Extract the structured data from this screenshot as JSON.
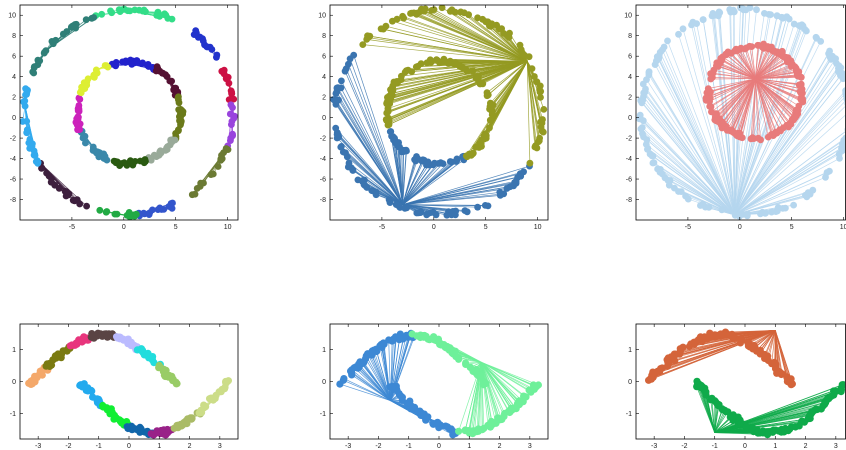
{
  "chart_data": [
    {
      "type": "scatter",
      "panel": "top-left",
      "description_style": "clusters of two concentric rings",
      "xlim": [
        -10,
        11
      ],
      "ylim": [
        -10,
        11
      ],
      "xticks": [
        -5,
        0,
        5,
        10
      ],
      "yticks": [
        -8,
        -6,
        -4,
        -2,
        0,
        2,
        4,
        6,
        8,
        10
      ],
      "xtick_labels": [
        "-5",
        "0",
        "5",
        "10"
      ],
      "ytick_labels": [
        "-8",
        "-6",
        "-4",
        "-2",
        "0",
        "2",
        "4",
        "6",
        "8",
        "10"
      ],
      "rings": [
        {
          "cx": 0.5,
          "cy": 0.5,
          "r": 10
        },
        {
          "cx": 0.5,
          "cy": 0.5,
          "r": 5
        }
      ],
      "clusters": [
        {
          "ring": 0,
          "from_deg": 60,
          "to_deg": 110,
          "color": "#33dd88"
        },
        {
          "ring": 0,
          "from_deg": 30,
          "to_deg": 60,
          "color": "#2233cc"
        },
        {
          "ring": 0,
          "from_deg": 5,
          "to_deg": 30,
          "color": "#cc1144"
        },
        {
          "ring": 0,
          "from_deg": -20,
          "to_deg": 5,
          "color": "#9944dd"
        },
        {
          "ring": 0,
          "from_deg": -55,
          "to_deg": -20,
          "color": "#6b7a33"
        },
        {
          "ring": 0,
          "from_deg": -85,
          "to_deg": -55,
          "color": "#3355cc"
        },
        {
          "ring": 0,
          "from_deg": -110,
          "to_deg": -85,
          "color": "#22aa44"
        },
        {
          "ring": 0,
          "from_deg": -150,
          "to_deg": -110,
          "color": "#3d1f3d"
        },
        {
          "ring": 0,
          "from_deg": -200,
          "to_deg": -150,
          "color": "#33aaee"
        },
        {
          "ring": 0,
          "from_deg": 110,
          "to_deg": 160,
          "color": "#2f7f77"
        },
        {
          "ring": 1,
          "from_deg": 60,
          "to_deg": 110,
          "color": "#2222cc"
        },
        {
          "ring": 1,
          "from_deg": 20,
          "to_deg": 60,
          "color": "#551133"
        },
        {
          "ring": 1,
          "from_deg": -30,
          "to_deg": 20,
          "color": "#6b7a1a"
        },
        {
          "ring": 1,
          "from_deg": -70,
          "to_deg": -30,
          "color": "#99aa99"
        },
        {
          "ring": 1,
          "from_deg": -110,
          "to_deg": -70,
          "color": "#2a5a11"
        },
        {
          "ring": 1,
          "from_deg": -160,
          "to_deg": -110,
          "color": "#3a88aa"
        },
        {
          "ring": 1,
          "from_deg": 160,
          "to_deg": 200,
          "color": "#cc22bb"
        },
        {
          "ring": 1,
          "from_deg": 110,
          "to_deg": 160,
          "color": "#ddee33"
        }
      ]
    },
    {
      "type": "scatter",
      "panel": "top-middle",
      "xlim": [
        -10,
        11
      ],
      "ylim": [
        -10,
        11
      ],
      "xticks": [
        -5,
        0,
        5,
        10
      ],
      "yticks": [
        -8,
        -6,
        -4,
        -2,
        0,
        2,
        4,
        6,
        8,
        10
      ],
      "xtick_labels": [
        "-5",
        "0",
        "5",
        "10"
      ],
      "ytick_labels": [
        "-8",
        "-6",
        "-4",
        "-2",
        "0",
        "2",
        "4",
        "6",
        "8",
        "10"
      ],
      "groups": [
        {
          "color": "#3a74b0",
          "center": [
            -3,
            -8.5
          ],
          "arcs": [
            {
              "ring": 0,
              "from_deg": 140,
              "to_deg": 330
            },
            {
              "ring": 1,
              "from_deg": 200,
              "to_deg": 300
            }
          ]
        },
        {
          "color": "#949a22",
          "center": [
            9,
            5.5
          ],
          "arcs": [
            {
              "ring": 0,
              "from_deg": -30,
              "to_deg": 140
            },
            {
              "ring": 1,
              "from_deg": -60,
              "to_deg": 200
            }
          ]
        }
      ],
      "rings": [
        {
          "cx": 0.5,
          "cy": 0.5,
          "r": 10
        },
        {
          "cx": 0.5,
          "cy": 0.5,
          "r": 5
        }
      ]
    },
    {
      "type": "scatter",
      "panel": "top-right",
      "xlim": [
        -10,
        11
      ],
      "ylim": [
        -10,
        11
      ],
      "xticks": [
        -5,
        0,
        5,
        10
      ],
      "yticks": [
        -8,
        -6,
        -4,
        -2,
        0,
        2,
        4,
        6,
        8,
        10
      ],
      "xtick_labels": [
        "-5",
        "0",
        "5",
        "10"
      ],
      "ytick_labels": [
        "-8",
        "-6",
        "-4",
        "-2",
        "0",
        "2",
        "4",
        "6",
        "8",
        "10"
      ],
      "groups": [
        {
          "color": "#b5d6ee",
          "center": [
            -0.5,
            -9.5
          ],
          "arcs": [
            {
              "ring": 0,
              "from_deg": 0,
              "to_deg": 360
            }
          ]
        },
        {
          "color": "#e87b7b",
          "center": [
            1.5,
            3.8
          ],
          "arcs": [
            {
              "ring": 1,
              "from_deg": 0,
              "to_deg": 360
            }
          ]
        }
      ],
      "rings": [
        {
          "cx": 0.5,
          "cy": 0.5,
          "r": 10
        },
        {
          "cx": 1.5,
          "cy": 2.5,
          "r": 4.5
        }
      ]
    },
    {
      "type": "scatter",
      "panel": "bottom-left",
      "description_style": "two interleaved half-moons split into clusters",
      "xlim": [
        -3.6,
        3.6
      ],
      "ylim": [
        -1.8,
        1.8
      ],
      "xticks": [
        -3,
        -2,
        -1,
        0,
        1,
        2,
        3
      ],
      "yticks": [
        -1,
        0,
        1
      ],
      "xtick_labels": [
        "-3",
        "-2",
        "-1",
        "0",
        "1",
        "2",
        "3"
      ],
      "ytick_labels": [
        "-1",
        "0",
        "1"
      ],
      "clusters": [
        {
          "moon": "upper",
          "from": 0.0,
          "to": 0.12,
          "color": "#f4a86a"
        },
        {
          "moon": "upper",
          "from": 0.12,
          "to": 0.28,
          "color": "#7a7a11"
        },
        {
          "moon": "upper",
          "from": 0.28,
          "to": 0.42,
          "color": "#e8357d"
        },
        {
          "moon": "upper",
          "from": 0.42,
          "to": 0.58,
          "color": "#5a4444"
        },
        {
          "moon": "upper",
          "from": 0.58,
          "to": 0.74,
          "color": "#bbbbff"
        },
        {
          "moon": "upper",
          "from": 0.74,
          "to": 0.88,
          "color": "#22dddd"
        },
        {
          "moon": "upper",
          "from": 0.88,
          "to": 1.0,
          "color": "#99cc66"
        },
        {
          "moon": "lower",
          "from": 0.0,
          "to": 0.15,
          "color": "#22aaee"
        },
        {
          "moon": "lower",
          "from": 0.15,
          "to": 0.32,
          "color": "#11ee33"
        },
        {
          "moon": "lower",
          "from": 0.32,
          "to": 0.48,
          "color": "#1166aa"
        },
        {
          "moon": "lower",
          "from": 0.48,
          "to": 0.62,
          "color": "#992288"
        },
        {
          "moon": "lower",
          "from": 0.62,
          "to": 0.8,
          "color": "#aabb66"
        },
        {
          "moon": "lower",
          "from": 0.8,
          "to": 1.0,
          "color": "#ccdd88"
        }
      ],
      "moons": {
        "upper": {
          "cx": -0.3,
          "cy": -0.25,
          "rx": 2.6,
          "ry": 2.1
        },
        "lower": {
          "cx": 0.3,
          "cy": 0.25,
          "rx": 2.6,
          "ry": 2.1
        }
      }
    },
    {
      "type": "scatter",
      "panel": "bottom-middle",
      "xlim": [
        -3.6,
        3.6
      ],
      "ylim": [
        -1.8,
        1.8
      ],
      "xticks": [
        -3,
        -2,
        -1,
        0,
        1,
        2,
        3
      ],
      "yticks": [
        -1,
        0,
        1
      ],
      "xtick_labels": [
        "-3",
        "-2",
        "-1",
        "0",
        "1",
        "2",
        "3"
      ],
      "ytick_labels": [
        "-1",
        "0",
        "1"
      ],
      "groups": [
        {
          "color": "#3d88d4",
          "center": [
            -1.6,
            -0.6
          ],
          "parts": [
            {
              "moon": "upper",
              "from": 0.0,
              "to": 0.5
            },
            {
              "moon": "lower",
              "from": 0.0,
              "to": 0.45
            }
          ]
        },
        {
          "color": "#6ef09a",
          "center": [
            1.4,
            0.6
          ],
          "parts": [
            {
              "moon": "upper",
              "from": 0.5,
              "to": 1.0
            },
            {
              "moon": "lower",
              "from": 0.45,
              "to": 1.0
            }
          ]
        }
      ],
      "moons": {
        "upper": {
          "cx": -0.3,
          "cy": -0.25,
          "rx": 2.6,
          "ry": 2.1
        },
        "lower": {
          "cx": 0.3,
          "cy": 0.25,
          "rx": 2.6,
          "ry": 2.1
        }
      }
    },
    {
      "type": "scatter",
      "panel": "bottom-right",
      "xlim": [
        -3.6,
        3.6
      ],
      "ylim": [
        -1.8,
        1.8
      ],
      "xticks": [
        -3,
        -2,
        -1,
        0,
        1,
        2,
        3
      ],
      "yticks": [
        -1,
        0,
        1
      ],
      "xtick_labels": [
        "-3",
        "-2",
        "-1",
        "0",
        "1",
        "2",
        "3"
      ],
      "ytick_labels": [
        "-1",
        "0",
        "1"
      ],
      "groups": [
        {
          "color": "#d4643a",
          "center": [
            1.0,
            1.6
          ],
          "parts": [
            {
              "moon": "upper",
              "from": 0.0,
              "to": 1.0
            }
          ]
        },
        {
          "color": "#0faa4a",
          "center": [
            -1.0,
            -1.6
          ],
          "parts": [
            {
              "moon": "lower",
              "from": 0.0,
              "to": 1.0
            }
          ]
        }
      ],
      "moons": {
        "upper": {
          "cx": -0.3,
          "cy": -0.25,
          "rx": 2.6,
          "ry": 2.1
        },
        "lower": {
          "cx": 0.3,
          "cy": 0.25,
          "rx": 2.6,
          "ry": 2.1
        }
      }
    }
  ]
}
